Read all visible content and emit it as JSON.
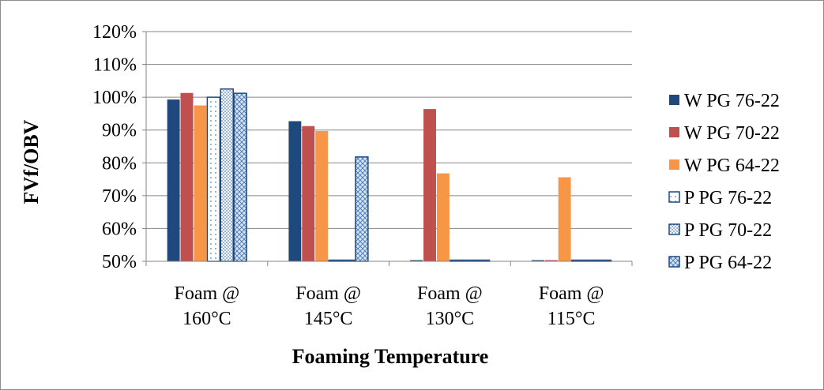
{
  "chart_data": {
    "type": "bar",
    "title": "",
    "xlabel": "Foaming Temperature",
    "ylabel": "FVf/OBV",
    "ylim": [
      0.5,
      1.2
    ],
    "y_ticks": [
      0.5,
      0.6,
      0.7,
      0.8,
      0.9,
      1.0,
      1.1,
      1.2
    ],
    "y_tick_labels": [
      "50%",
      "60%",
      "70%",
      "80%",
      "90%",
      "100%",
      "110%",
      "120%"
    ],
    "grid": true,
    "legend_position": "right",
    "categories": [
      [
        "Foam @",
        "160°C"
      ],
      [
        "Foam @",
        "145°C"
      ],
      [
        "Foam @",
        "130°C"
      ],
      [
        "Foam @",
        "115°C"
      ]
    ],
    "series": [
      {
        "name": "W PG 76-22",
        "values": [
          0.993,
          0.927,
          0.499,
          0.499
        ],
        "color": "#1f497d",
        "pattern": "solid"
      },
      {
        "name": "W PG 70-22",
        "values": [
          1.013,
          0.912,
          0.964,
          0.499
        ],
        "color": "#c0504d",
        "pattern": "solid"
      },
      {
        "name": "W PG 64-22",
        "values": [
          0.975,
          0.897,
          0.768,
          0.756
        ],
        "color": "#f79646",
        "pattern": "solid"
      },
      {
        "name": "P PG 76-22",
        "values": [
          1.0,
          0.499,
          0.499,
          0.499
        ],
        "color": "#1f497d",
        "pattern": "sparse-dots"
      },
      {
        "name": "P PG 70-22",
        "values": [
          1.025,
          0.499,
          0.499,
          0.499
        ],
        "color": "#1f497d",
        "pattern": "dots"
      },
      {
        "name": "P PG 64-22",
        "values": [
          1.012,
          0.818,
          0.499,
          0.499
        ],
        "color": "#1f497d",
        "pattern": "crosshatch"
      }
    ]
  }
}
